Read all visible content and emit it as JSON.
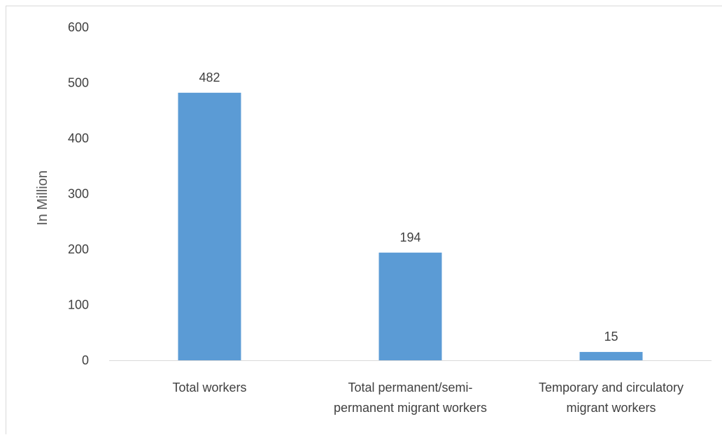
{
  "chart_data": {
    "type": "bar",
    "title": "",
    "xlabel": "",
    "ylabel": "In Million",
    "ylim": [
      0,
      600
    ],
    "yticks": [
      0,
      100,
      200,
      300,
      400,
      500,
      600
    ],
    "grid": false,
    "legend": "none",
    "categories": [
      [
        "Total workers"
      ],
      [
        "Total permanent/semi-",
        "permanent migrant workers"
      ],
      [
        "Temporary and circulatory",
        "migrant workers"
      ]
    ],
    "values": [
      482,
      194,
      15
    ],
    "data_labels": [
      "482",
      "194",
      "15"
    ],
    "bar_color": "#5b9bd5",
    "axis_color": "#d9d9d9",
    "text_color": "#404040"
  }
}
